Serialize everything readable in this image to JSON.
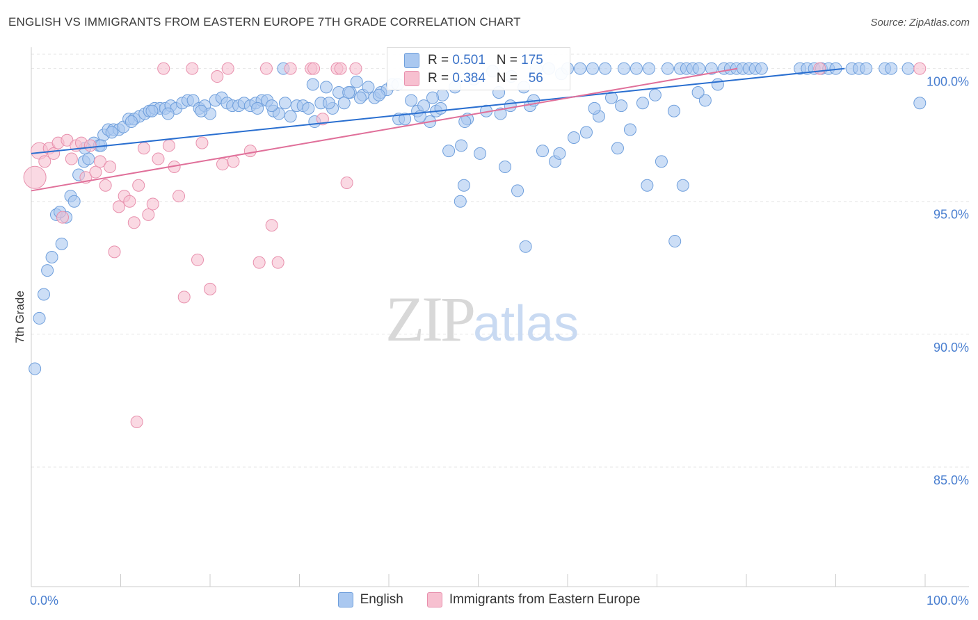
{
  "title": "ENGLISH VS IMMIGRANTS FROM EASTERN EUROPE 7TH GRADE CORRELATION CHART",
  "source": "Source: ZipAtlas.com",
  "watermark": {
    "zip": "ZIP",
    "atlas": "atlas"
  },
  "colors": {
    "english_fill": "#aac8f0",
    "english_stroke": "#6f9fdc",
    "english_line": "#2a6fd0",
    "immig_fill": "#f7c0d0",
    "immig_stroke": "#e890ad",
    "immig_line": "#e0709a",
    "grid": "#e6e6e6",
    "axis_text": "#4a7fd0"
  },
  "stats": {
    "english": {
      "r_label": "R =",
      "r": "0.501",
      "n_label": "N =",
      "n": "175"
    },
    "immig": {
      "r_label": "R =",
      "r": "0.384",
      "n_label": "N =",
      "n": "56"
    }
  },
  "legend": {
    "english": "English",
    "immig": "Immigrants from Eastern Europe"
  },
  "chart_data": {
    "type": "scatter",
    "title": "ENGLISH VS IMMIGRANTS FROM EASTERN EUROPE 7TH GRADE CORRELATION CHART",
    "xlabel": "",
    "ylabel": "7th Grade",
    "xlim": [
      0,
      100
    ],
    "ylim": [
      80.5,
      100.8
    ],
    "x_tick_labels": [
      {
        "v": 0,
        "label": "0.0%"
      },
      {
        "v": 100,
        "label": "100.0%"
      }
    ],
    "y_ticks": [
      {
        "v": 100,
        "label": "100.0%"
      },
      {
        "v": 95,
        "label": "95.0%"
      },
      {
        "v": 90,
        "label": "90.0%"
      },
      {
        "v": 85,
        "label": "85.0%"
      }
    ],
    "grid": true,
    "legend_position": "bottom",
    "series": [
      {
        "name": "English",
        "trend": {
          "x": [
            0,
            91
          ],
          "y": [
            96.8,
            100.0
          ]
        },
        "points": [
          [
            0.4,
            88.7
          ],
          [
            0.9,
            90.6
          ],
          [
            1.4,
            91.5
          ],
          [
            1.8,
            92.4
          ],
          [
            2.3,
            92.9
          ],
          [
            2.8,
            94.5
          ],
          [
            3.4,
            93.4
          ],
          [
            3.9,
            94.4
          ],
          [
            4.4,
            95.2
          ],
          [
            4.8,
            95.0
          ],
          [
            5.3,
            96.0
          ],
          [
            5.9,
            96.5
          ],
          [
            6.4,
            96.6
          ],
          [
            7.0,
            97.2
          ],
          [
            7.6,
            97.1
          ],
          [
            8.1,
            97.5
          ],
          [
            8.6,
            97.7
          ],
          [
            9.2,
            97.7
          ],
          [
            9.8,
            97.7
          ],
          [
            10.3,
            97.8
          ],
          [
            10.9,
            98.1
          ],
          [
            11.5,
            98.1
          ],
          [
            12.1,
            98.2
          ],
          [
            12.7,
            98.3
          ],
          [
            13.2,
            98.4
          ],
          [
            13.8,
            98.5
          ],
          [
            14.4,
            98.5
          ],
          [
            15.0,
            98.5
          ],
          [
            15.6,
            98.6
          ],
          [
            16.2,
            98.5
          ],
          [
            16.9,
            98.7
          ],
          [
            17.5,
            98.8
          ],
          [
            18.1,
            98.8
          ],
          [
            18.8,
            98.5
          ],
          [
            19.4,
            98.6
          ],
          [
            20.0,
            98.3
          ],
          [
            20.6,
            98.8
          ],
          [
            21.3,
            98.9
          ],
          [
            21.9,
            98.7
          ],
          [
            22.5,
            98.6
          ],
          [
            23.2,
            98.6
          ],
          [
            23.8,
            98.7
          ],
          [
            24.5,
            98.6
          ],
          [
            25.1,
            98.7
          ],
          [
            25.8,
            98.8
          ],
          [
            26.4,
            98.8
          ],
          [
            27.1,
            98.4
          ],
          [
            27.7,
            98.3
          ],
          [
            28.4,
            98.7
          ],
          [
            29.0,
            98.2
          ],
          [
            29.7,
            98.6
          ],
          [
            30.4,
            98.6
          ],
          [
            31.0,
            98.5
          ],
          [
            31.7,
            98.0
          ],
          [
            32.4,
            98.7
          ],
          [
            33.0,
            99.3
          ],
          [
            33.7,
            98.5
          ],
          [
            34.4,
            99.1
          ],
          [
            35.0,
            98.7
          ],
          [
            35.7,
            99.1
          ],
          [
            36.4,
            99.5
          ],
          [
            37.1,
            99.0
          ],
          [
            37.7,
            99.3
          ],
          [
            38.4,
            98.9
          ],
          [
            39.1,
            99.1
          ],
          [
            39.8,
            99.2
          ],
          [
            40.4,
            99.4
          ],
          [
            41.1,
            98.1
          ],
          [
            41.8,
            98.1
          ],
          [
            42.5,
            98.8
          ],
          [
            43.2,
            98.4
          ],
          [
            43.9,
            98.6
          ],
          [
            44.6,
            98.0
          ],
          [
            45.3,
            98.4
          ],
          [
            46.0,
            99.0
          ],
          [
            46.7,
            96.9
          ],
          [
            47.4,
            99.3
          ],
          [
            48.1,
            97.1
          ],
          [
            48.8,
            98.1
          ],
          [
            49.5,
            99.6
          ],
          [
            50.2,
            96.8
          ],
          [
            50.9,
            98.4
          ],
          [
            51.6,
            99.9
          ],
          [
            52.3,
            99.1
          ],
          [
            53.0,
            96.3
          ],
          [
            53.7,
            99.7
          ],
          [
            54.4,
            95.4
          ],
          [
            55.1,
            99.3
          ],
          [
            55.8,
            98.6
          ],
          [
            56.5,
            100.0
          ],
          [
            57.2,
            96.9
          ],
          [
            57.9,
            100.0
          ],
          [
            58.6,
            96.5
          ],
          [
            59.3,
            99.8
          ],
          [
            60.0,
            100.0
          ],
          [
            60.7,
            97.4
          ],
          [
            61.4,
            100.0
          ],
          [
            62.1,
            97.6
          ],
          [
            62.8,
            100.0
          ],
          [
            63.5,
            98.2
          ],
          [
            64.2,
            100.0
          ],
          [
            64.9,
            98.9
          ],
          [
            65.6,
            97.0
          ],
          [
            66.3,
            100.0
          ],
          [
            67.0,
            97.7
          ],
          [
            67.7,
            100.0
          ],
          [
            68.4,
            98.7
          ],
          [
            69.1,
            100.0
          ],
          [
            69.8,
            99.0
          ],
          [
            70.5,
            96.5
          ],
          [
            71.2,
            100.0
          ],
          [
            71.9,
            98.4
          ],
          [
            72.6,
            100.0
          ],
          [
            73.3,
            100.0
          ],
          [
            74.0,
            100.0
          ],
          [
            74.7,
            100.0
          ],
          [
            75.4,
            98.8
          ],
          [
            76.1,
            100.0
          ],
          [
            76.8,
            99.4
          ],
          [
            77.5,
            100.0
          ],
          [
            78.2,
            100.0
          ],
          [
            78.9,
            100.0
          ],
          [
            79.6,
            100.0
          ],
          [
            80.3,
            100.0
          ],
          [
            81.0,
            100.0
          ],
          [
            81.7,
            100.0
          ],
          [
            86.0,
            100.0
          ],
          [
            86.8,
            100.0
          ],
          [
            87.6,
            100.0
          ],
          [
            88.4,
            100.0
          ],
          [
            89.2,
            100.0
          ],
          [
            90.0,
            100.0
          ],
          [
            91.8,
            100.0
          ],
          [
            92.6,
            100.0
          ],
          [
            93.4,
            100.0
          ],
          [
            95.5,
            100.0
          ],
          [
            96.2,
            100.0
          ],
          [
            98.1,
            100.0
          ],
          [
            99.4,
            98.7
          ],
          [
            28.2,
            100.0
          ],
          [
            31.5,
            99.4
          ],
          [
            35.5,
            99.1
          ],
          [
            38.9,
            99.0
          ],
          [
            43.5,
            98.2
          ],
          [
            44.9,
            98.9
          ],
          [
            48.5,
            98.0
          ],
          [
            52.5,
            98.3
          ],
          [
            56.2,
            98.8
          ],
          [
            59.1,
            96.8
          ],
          [
            63.0,
            98.5
          ],
          [
            66.0,
            98.6
          ],
          [
            68.9,
            95.6
          ],
          [
            72.0,
            93.5
          ],
          [
            72.9,
            95.6
          ],
          [
            74.6,
            99.1
          ],
          [
            55.3,
            93.3
          ],
          [
            48.0,
            95.0
          ],
          [
            48.4,
            95.6
          ],
          [
            53.6,
            98.6
          ],
          [
            45.8,
            98.5
          ],
          [
            41.0,
            99.4
          ],
          [
            36.8,
            98.9
          ],
          [
            33.3,
            98.7
          ],
          [
            26.9,
            98.6
          ],
          [
            25.3,
            98.5
          ],
          [
            19.0,
            98.4
          ],
          [
            15.3,
            98.3
          ],
          [
            13.5,
            98.4
          ],
          [
            11.2,
            98.0
          ],
          [
            9.0,
            97.6
          ],
          [
            7.8,
            97.1
          ],
          [
            6.0,
            97.0
          ],
          [
            3.2,
            94.6
          ]
        ]
      },
      {
        "name": "Immigrants from Eastern Europe",
        "trend": {
          "x": [
            0,
            79
          ],
          "y": [
            95.4,
            100.0
          ]
        },
        "points": [
          [
            0.4,
            95.9
          ],
          [
            0.9,
            96.9
          ],
          [
            1.5,
            96.5
          ],
          [
            2.0,
            97.0
          ],
          [
            2.5,
            96.8
          ],
          [
            3.0,
            97.2
          ],
          [
            3.5,
            94.4
          ],
          [
            4.0,
            97.3
          ],
          [
            4.5,
            96.6
          ],
          [
            5.0,
            97.1
          ],
          [
            5.6,
            97.2
          ],
          [
            6.1,
            95.9
          ],
          [
            6.6,
            97.1
          ],
          [
            7.2,
            96.1
          ],
          [
            7.7,
            96.5
          ],
          [
            8.3,
            95.6
          ],
          [
            8.8,
            96.3
          ],
          [
            9.3,
            93.1
          ],
          [
            9.8,
            94.8
          ],
          [
            10.4,
            95.2
          ],
          [
            11.0,
            95.0
          ],
          [
            11.5,
            94.2
          ],
          [
            12.0,
            95.6
          ],
          [
            12.6,
            97.0
          ],
          [
            13.1,
            94.5
          ],
          [
            13.6,
            94.9
          ],
          [
            14.2,
            96.6
          ],
          [
            14.8,
            100.0
          ],
          [
            15.4,
            97.1
          ],
          [
            16.0,
            96.3
          ],
          [
            16.5,
            95.2
          ],
          [
            17.1,
            91.4
          ],
          [
            18.0,
            100.0
          ],
          [
            18.6,
            92.8
          ],
          [
            19.1,
            97.2
          ],
          [
            20.0,
            91.7
          ],
          [
            20.8,
            99.7
          ],
          [
            21.4,
            96.4
          ],
          [
            22.0,
            100.0
          ],
          [
            22.6,
            96.5
          ],
          [
            24.5,
            96.9
          ],
          [
            25.5,
            92.7
          ],
          [
            26.3,
            100.0
          ],
          [
            26.9,
            94.1
          ],
          [
            27.6,
            92.7
          ],
          [
            29.0,
            100.0
          ],
          [
            31.3,
            100.0
          ],
          [
            31.6,
            100.0
          ],
          [
            32.6,
            98.1
          ],
          [
            34.2,
            100.0
          ],
          [
            35.3,
            95.7
          ],
          [
            36.3,
            100.0
          ],
          [
            88.2,
            100.0
          ],
          [
            99.4,
            100.0
          ],
          [
            11.8,
            86.7
          ],
          [
            34.6,
            100.0
          ]
        ]
      }
    ]
  }
}
